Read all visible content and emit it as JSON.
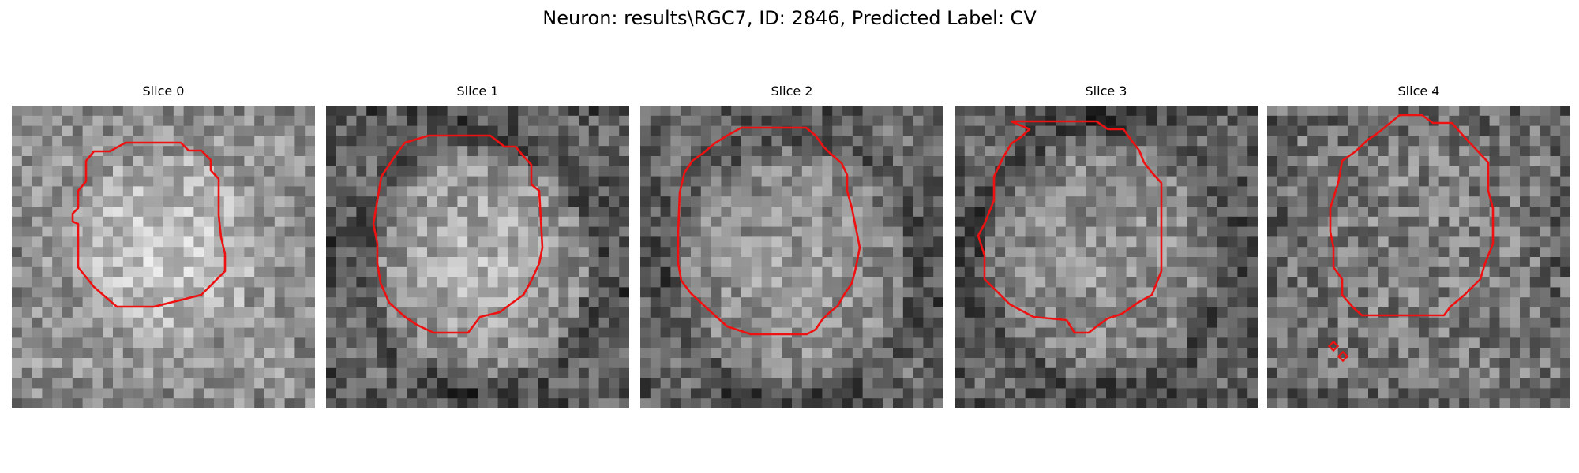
{
  "figure": {
    "suptitle": "Neuron: results\\RGC7, ID: 2846, Predicted Label: CV",
    "contour_color": "#ee1111"
  },
  "slices": [
    {
      "title": "Slice 0"
    },
    {
      "title": "Slice 1"
    },
    {
      "title": "Slice 2"
    },
    {
      "title": "Slice 3"
    },
    {
      "title": "Slice 4"
    }
  ]
}
